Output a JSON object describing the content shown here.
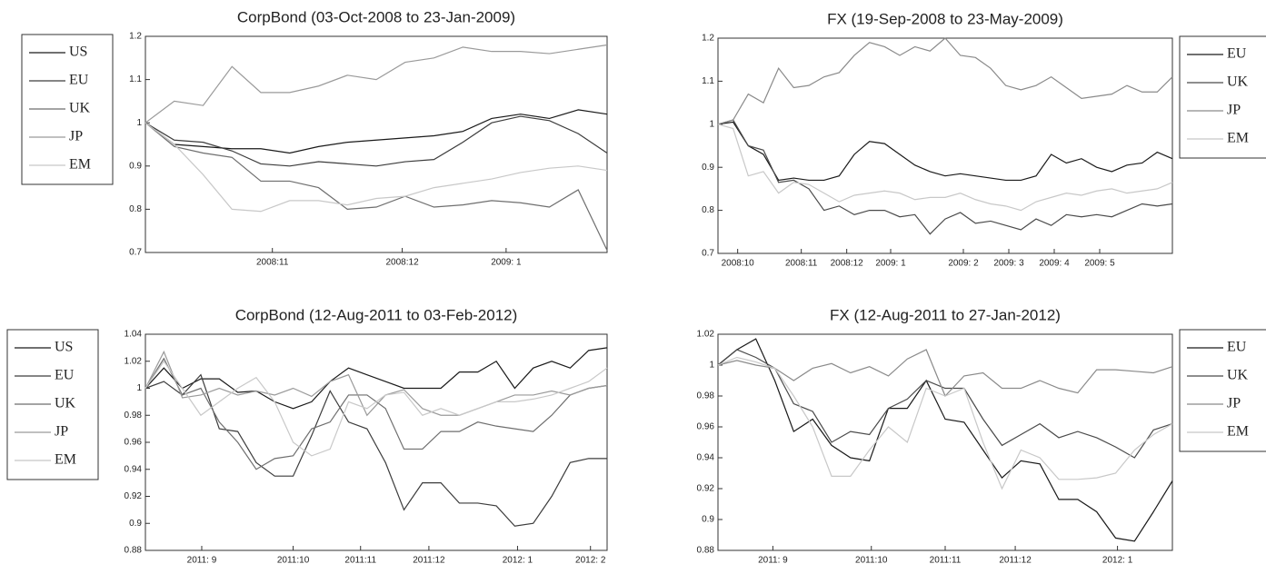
{
  "chart_data": [
    {
      "type": "line",
      "title": "CorpBond (03-Oct-2008 to 23-Jan-2009)",
      "legend": "left",
      "x": [
        0,
        1,
        2,
        3,
        4,
        5,
        6,
        7,
        8,
        9,
        10,
        11,
        12,
        13,
        14,
        15,
        16
      ],
      "xlim": [
        0,
        16
      ],
      "xticks": [
        {
          "value": 4.4,
          "label": "2008:11"
        },
        {
          "value": 8.9,
          "label": "2008:12"
        },
        {
          "value": 12.5,
          "label": "2009: 1"
        }
      ],
      "ylim": [
        0.7,
        1.2
      ],
      "yticks": [
        0.7,
        0.8,
        0.9,
        1,
        1.1,
        1.2
      ],
      "series": [
        {
          "name": "US",
          "color": "#1a1a1a",
          "values": [
            1.0,
            0.95,
            0.945,
            0.94,
            0.94,
            0.93,
            0.945,
            0.955,
            0.96,
            0.965,
            0.97,
            0.98,
            1.01,
            1.02,
            1.01,
            1.03,
            1.02
          ]
        },
        {
          "name": "EU",
          "color": "#3c3c3c",
          "values": [
            1.0,
            0.96,
            0.955,
            0.935,
            0.905,
            0.9,
            0.91,
            0.905,
            0.9,
            0.91,
            0.915,
            0.955,
            1.0,
            1.015,
            1.005,
            0.975,
            0.93
          ]
        },
        {
          "name": "UK",
          "color": "#6e6e6e",
          "values": [
            1.0,
            0.945,
            0.93,
            0.92,
            0.865,
            0.865,
            0.85,
            0.8,
            0.805,
            0.83,
            0.805,
            0.81,
            0.82,
            0.815,
            0.805,
            0.845,
            0.705
          ]
        },
        {
          "name": "JP",
          "color": "#9a9a9a",
          "values": [
            1.0,
            1.05,
            1.04,
            1.13,
            1.07,
            1.07,
            1.085,
            1.11,
            1.1,
            1.14,
            1.15,
            1.175,
            1.165,
            1.165,
            1.16,
            1.17,
            1.18
          ]
        },
        {
          "name": "EM",
          "color": "#c8c8c8",
          "values": [
            1.0,
            0.95,
            0.88,
            0.8,
            0.795,
            0.82,
            0.82,
            0.81,
            0.825,
            0.83,
            0.85,
            0.86,
            0.87,
            0.885,
            0.895,
            0.9,
            0.89
          ]
        }
      ]
    },
    {
      "type": "line",
      "title": "FX (19-Sep-2008 to 23-May-2009)",
      "legend": "right",
      "x": [
        0,
        1,
        2,
        3,
        4,
        5,
        6,
        7,
        8,
        9,
        10,
        11,
        12,
        13,
        14,
        15,
        16,
        17,
        18,
        19,
        20,
        21,
        22,
        23,
        24,
        25,
        26,
        27,
        28,
        29,
        30
      ],
      "xlim": [
        0,
        30
      ],
      "xticks": [
        {
          "value": 1.3,
          "label": "2008:10"
        },
        {
          "value": 5.5,
          "label": "2008:11"
        },
        {
          "value": 8.5,
          "label": "2008:12"
        },
        {
          "value": 11.4,
          "label": "2009: 1"
        },
        {
          "value": 16.2,
          "label": "2009: 2"
        },
        {
          "value": 19.2,
          "label": "2009: 3"
        },
        {
          "value": 22.2,
          "label": "2009: 4"
        },
        {
          "value": 25.2,
          "label": "2009: 5"
        }
      ],
      "ylim": [
        0.7,
        1.2
      ],
      "yticks": [
        0.7,
        0.8,
        0.9,
        1,
        1.1,
        1.2
      ],
      "series": [
        {
          "name": "EU",
          "color": "#1a1a1a",
          "values": [
            1.0,
            1.005,
            0.95,
            0.93,
            0.87,
            0.875,
            0.87,
            0.87,
            0.88,
            0.93,
            0.96,
            0.955,
            0.93,
            0.905,
            0.89,
            0.88,
            0.885,
            0.88,
            0.875,
            0.87,
            0.87,
            0.88,
            0.93,
            0.91,
            0.92,
            0.9,
            0.89,
            0.905,
            0.91,
            0.935,
            0.92
          ]
        },
        {
          "name": "UK",
          "color": "#4a4a4a",
          "values": [
            1.0,
            1.01,
            0.95,
            0.94,
            0.865,
            0.87,
            0.85,
            0.8,
            0.81,
            0.79,
            0.8,
            0.8,
            0.785,
            0.79,
            0.745,
            0.78,
            0.795,
            0.77,
            0.775,
            0.765,
            0.755,
            0.78,
            0.765,
            0.79,
            0.785,
            0.79,
            0.785,
            0.8,
            0.815,
            0.81,
            0.815
          ]
        },
        {
          "name": "JP",
          "color": "#8a8a8a",
          "values": [
            1.0,
            1.01,
            1.07,
            1.05,
            1.13,
            1.085,
            1.09,
            1.11,
            1.12,
            1.16,
            1.19,
            1.18,
            1.16,
            1.18,
            1.17,
            1.2,
            1.16,
            1.155,
            1.13,
            1.09,
            1.08,
            1.09,
            1.11,
            1.085,
            1.06,
            1.065,
            1.07,
            1.09,
            1.075,
            1.075,
            1.11
          ]
        },
        {
          "name": "EM",
          "color": "#c8c8c8",
          "values": [
            1.0,
            0.99,
            0.88,
            0.89,
            0.84,
            0.865,
            0.86,
            0.84,
            0.82,
            0.835,
            0.84,
            0.845,
            0.84,
            0.825,
            0.83,
            0.83,
            0.84,
            0.825,
            0.815,
            0.81,
            0.8,
            0.82,
            0.83,
            0.84,
            0.835,
            0.845,
            0.85,
            0.84,
            0.845,
            0.85,
            0.865
          ]
        }
      ]
    },
    {
      "type": "line",
      "title": "CorpBond (12-Aug-2011 to 03-Feb-2012)",
      "legend": "left",
      "x": [
        0,
        1,
        2,
        3,
        4,
        5,
        6,
        7,
        8,
        9,
        10,
        11,
        12,
        13,
        14,
        15,
        16,
        17,
        18,
        19,
        20,
        21,
        22,
        23,
        24,
        25
      ],
      "xlim": [
        0,
        25
      ],
      "xticks": [
        {
          "value": 3.05,
          "label": "2011: 9"
        },
        {
          "value": 8.0,
          "label": "2011:10"
        },
        {
          "value": 11.65,
          "label": "2011:11"
        },
        {
          "value": 15.35,
          "label": "2011:12"
        },
        {
          "value": 20.15,
          "label": "2012: 1"
        },
        {
          "value": 24.1,
          "label": "2012: 2"
        }
      ],
      "ylim": [
        0.88,
        1.04
      ],
      "yticks": [
        0.88,
        0.9,
        0.92,
        0.94,
        0.96,
        0.98,
        1,
        1.02,
        1.04
      ],
      "series": [
        {
          "name": "US",
          "color": "#1a1a1a",
          "values": [
            1.0,
            1.015,
            1.0,
            1.007,
            1.007,
            0.997,
            0.998,
            0.99,
            0.985,
            0.99,
            1.005,
            1.015,
            1.01,
            1.005,
            1.0,
            1.0,
            1.0,
            1.012,
            1.012,
            1.02,
            1.0,
            1.015,
            1.02,
            1.015,
            1.028,
            1.03
          ]
        },
        {
          "name": "EU",
          "color": "#3c3c3c",
          "values": [
            1.0,
            1.005,
            0.995,
            1.01,
            0.97,
            0.968,
            0.945,
            0.935,
            0.935,
            0.965,
            0.998,
            0.975,
            0.97,
            0.945,
            0.91,
            0.93,
            0.93,
            0.915,
            0.915,
            0.913,
            0.898,
            0.9,
            0.92,
            0.945,
            0.948,
            0.948
          ]
        },
        {
          "name": "UK",
          "color": "#6e6e6e",
          "values": [
            1.0,
            1.022,
            0.995,
            1.0,
            0.975,
            0.96,
            0.94,
            0.948,
            0.95,
            0.97,
            0.975,
            0.995,
            0.995,
            0.985,
            0.955,
            0.955,
            0.968,
            0.968,
            0.975,
            0.972,
            0.97,
            0.968,
            0.98,
            0.995,
            1.0,
            1.002
          ]
        },
        {
          "name": "JP",
          "color": "#9a9a9a",
          "values": [
            1.0,
            1.027,
            0.993,
            0.995,
            1.0,
            0.995,
            0.998,
            0.995,
            1.0,
            0.994,
            1.005,
            1.01,
            0.98,
            0.995,
            0.999,
            0.985,
            0.98,
            0.98,
            0.985,
            0.99,
            0.995,
            0.995,
            0.998,
            0.995,
            1.0,
            1.002
          ]
        },
        {
          "name": "EM",
          "color": "#c8c8c8",
          "values": [
            1.0,
            1.02,
            1.0,
            0.98,
            0.99,
            1.0,
            1.008,
            0.99,
            0.96,
            0.95,
            0.955,
            0.99,
            0.985,
            0.995,
            0.997,
            0.98,
            0.985,
            0.98,
            0.985,
            0.99,
            0.99,
            0.992,
            0.995,
            1.0,
            1.005,
            1.015
          ]
        }
      ]
    },
    {
      "type": "line",
      "title": "FX (12-Aug-2011 to 27-Jan-2012)",
      "legend": "right",
      "x": [
        0,
        1,
        2,
        3,
        4,
        5,
        6,
        7,
        8,
        9,
        10,
        11,
        12,
        13,
        14,
        15,
        16,
        17,
        18,
        19,
        20,
        21,
        22,
        23,
        24
      ],
      "xlim": [
        0,
        24
      ],
      "xticks": [
        {
          "value": 2.9,
          "label": "2011: 9"
        },
        {
          "value": 8.1,
          "label": "2011:10"
        },
        {
          "value": 12,
          "label": "2011:11"
        },
        {
          "value": 15.7,
          "label": "2011:12"
        },
        {
          "value": 21.1,
          "label": "2012: 1"
        }
      ],
      "ylim": [
        0.88,
        1.02
      ],
      "yticks": [
        0.88,
        0.9,
        0.92,
        0.94,
        0.96,
        0.98,
        1,
        1.02
      ],
      "series": [
        {
          "name": "EU",
          "color": "#1a1a1a",
          "values": [
            1.0,
            1.01,
            1.017,
            0.99,
            0.957,
            0.965,
            0.948,
            0.94,
            0.938,
            0.972,
            0.972,
            0.99,
            0.965,
            0.963,
            0.945,
            0.927,
            0.938,
            0.936,
            0.913,
            0.913,
            0.905,
            0.888,
            0.886,
            0.905,
            0.925
          ]
        },
        {
          "name": "UK",
          "color": "#4a4a4a",
          "values": [
            1.0,
            1.01,
            1.005,
            0.998,
            0.975,
            0.97,
            0.95,
            0.957,
            0.955,
            0.972,
            0.978,
            0.99,
            0.985,
            0.985,
            0.965,
            0.948,
            0.955,
            0.962,
            0.953,
            0.957,
            0.953,
            0.947,
            0.94,
            0.958,
            0.962
          ]
        },
        {
          "name": "JP",
          "color": "#8a8a8a",
          "values": [
            1.0,
            1.003,
            1.0,
            0.998,
            0.99,
            0.998,
            1.001,
            0.995,
            0.999,
            0.993,
            1.004,
            1.01,
            0.98,
            0.993,
            0.995,
            0.985,
            0.985,
            0.99,
            0.985,
            0.982,
            0.997,
            0.997,
            0.996,
            0.995,
            0.999
          ]
        },
        {
          "name": "EM",
          "color": "#c8c8c8",
          "values": [
            1.0,
            1.005,
            1.002,
            0.998,
            0.98,
            0.96,
            0.928,
            0.928,
            0.945,
            0.96,
            0.95,
            0.985,
            0.98,
            0.985,
            0.95,
            0.92,
            0.945,
            0.94,
            0.926,
            0.926,
            0.927,
            0.93,
            0.945,
            0.955,
            0.962
          ]
        }
      ]
    }
  ]
}
